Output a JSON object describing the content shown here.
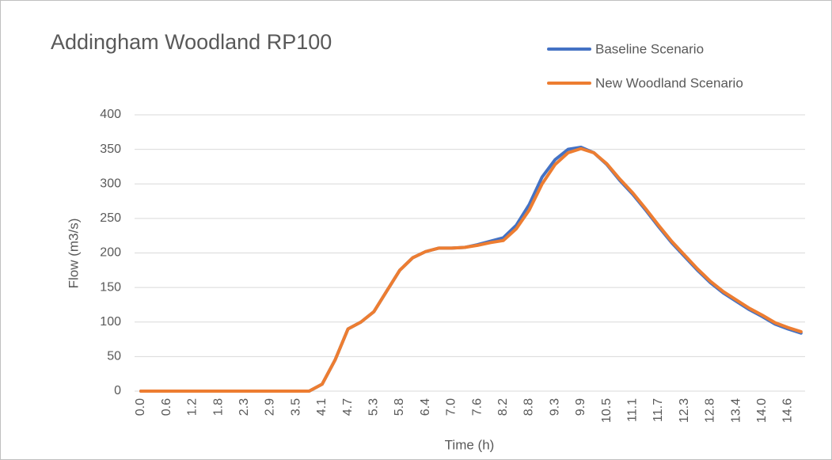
{
  "chart_data": {
    "type": "line",
    "title": "Addingham Woodland RP100",
    "x_label": "Time (h)",
    "y_label": "Flow (m3/s)",
    "categories": [
      "0.0",
      null,
      "0.6",
      null,
      "1.2",
      null,
      "1.8",
      null,
      "2.3",
      null,
      "2.9",
      null,
      "3.5",
      null,
      "4.1",
      null,
      "4.7",
      null,
      "5.3",
      null,
      "5.8",
      null,
      "6.4",
      null,
      "7.0",
      null,
      "7.6",
      null,
      "8.2",
      null,
      "8.8",
      null,
      "9.3",
      null,
      "9.9",
      null,
      "10.5",
      null,
      "11.1",
      null,
      "11.7",
      null,
      "12.3",
      null,
      "12.8",
      null,
      "13.4",
      null,
      "14.0",
      null,
      "14.6",
      null
    ],
    "series": [
      {
        "name": "Baseline Scenario",
        "color": "#4472c4",
        "values": [
          0,
          0,
          0,
          0,
          0,
          0,
          0,
          0,
          0,
          0,
          0,
          0,
          0,
          0,
          10,
          45,
          90,
          100,
          115,
          145,
          175,
          193,
          202,
          207,
          207,
          208,
          212,
          217,
          222,
          240,
          270,
          310,
          335,
          350,
          353,
          345,
          328,
          305,
          285,
          262,
          238,
          215,
          195,
          175,
          157,
          142,
          130,
          118,
          108,
          97,
          90,
          84
        ]
      },
      {
        "name": "New Woodland Scenario",
        "color": "#ed7d31",
        "values": [
          0,
          0,
          0,
          0,
          0,
          0,
          0,
          0,
          0,
          0,
          0,
          0,
          0,
          0,
          10,
          45,
          90,
          100,
          115,
          145,
          175,
          193,
          202,
          207,
          207,
          208,
          211,
          215,
          218,
          235,
          262,
          300,
          328,
          345,
          351,
          345,
          329,
          307,
          287,
          264,
          240,
          217,
          197,
          177,
          159,
          144,
          132,
          120,
          110,
          99,
          92,
          86
        ]
      }
    ],
    "ylim": [
      0,
      400
    ],
    "yticks": [
      0,
      50,
      100,
      150,
      200,
      250,
      300,
      350,
      400
    ],
    "grid": true,
    "legend": "top-right"
  }
}
